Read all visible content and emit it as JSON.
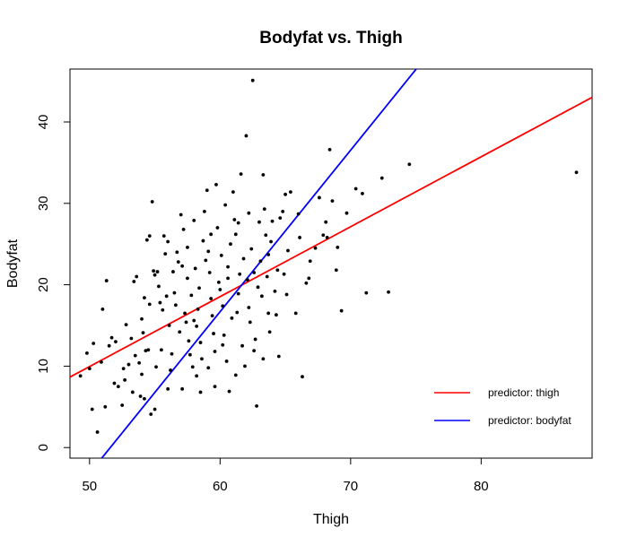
{
  "chart_data": {
    "type": "scatter",
    "title": "Bodyfat vs. Thigh",
    "xlabel": "Thigh",
    "ylabel": "Bodyfat",
    "xlim": [
      48.5,
      88.5
    ],
    "ylim": [
      -1.3,
      46.5
    ],
    "xticks": [
      50,
      60,
      70,
      80
    ],
    "yticks": [
      0,
      10,
      20,
      30,
      40
    ],
    "grid": false,
    "legend_position": "bottom-right",
    "lines": [
      {
        "name": "predictor: thigh",
        "color": "#ff0000",
        "intercept": -33.0,
        "slope": 0.859
      },
      {
        "name": "predictor: bodyfat",
        "color": "#0000ff",
        "intercept": -102.35,
        "slope": 1.984
      }
    ],
    "points": [
      [
        49.3,
        8.8
      ],
      [
        50.0,
        9.7
      ],
      [
        50.3,
        12.8
      ],
      [
        50.6,
        1.9
      ],
      [
        51.2,
        5.0
      ],
      [
        51.5,
        12.5
      ],
      [
        51.7,
        13.5
      ],
      [
        51.0,
        17.0
      ],
      [
        51.3,
        20.5
      ],
      [
        49.8,
        11.6
      ],
      [
        50.9,
        10.5
      ],
      [
        50.2,
        4.7
      ],
      [
        52.2,
        7.5
      ],
      [
        52.5,
        5.2
      ],
      [
        52.7,
        8.3
      ],
      [
        52.0,
        13.0
      ],
      [
        53.0,
        10.2
      ],
      [
        53.2,
        13.4
      ],
      [
        53.5,
        11.3
      ],
      [
        52.8,
        15.1
      ],
      [
        53.3,
        6.8
      ],
      [
        52.6,
        9.7
      ],
      [
        51.9,
        7.9
      ],
      [
        53.8,
        10.4
      ],
      [
        54.0,
        15.8
      ],
      [
        54.2,
        18.4
      ],
      [
        54.4,
        25.5
      ],
      [
        54.6,
        17.6
      ],
      [
        54.8,
        30.2
      ],
      [
        54.5,
        12.0
      ],
      [
        54.3,
        11.9
      ],
      [
        54.9,
        21.7
      ],
      [
        54.1,
        14.1
      ],
      [
        53.9,
        6.3
      ],
      [
        54.7,
        4.1
      ],
      [
        54.2,
        6.0
      ],
      [
        54.0,
        9.0
      ],
      [
        53.6,
        21.0
      ],
      [
        53.4,
        20.4
      ],
      [
        54.6,
        26.0
      ],
      [
        55.0,
        21.2
      ],
      [
        55.2,
        21.6
      ],
      [
        55.4,
        17.8
      ],
      [
        55.5,
        12.0
      ],
      [
        55.7,
        26.0
      ],
      [
        55.8,
        23.8
      ],
      [
        55.9,
        18.6
      ],
      [
        55.6,
        16.9
      ],
      [
        55.3,
        19.8
      ],
      [
        55.1,
        9.9
      ],
      [
        55.0,
        4.7
      ],
      [
        56.0,
        25.3
      ],
      [
        56.1,
        15.0
      ],
      [
        56.3,
        11.5
      ],
      [
        56.4,
        21.6
      ],
      [
        56.5,
        19.0
      ],
      [
        56.6,
        17.5
      ],
      [
        56.7,
        24.0
      ],
      [
        56.8,
        22.8
      ],
      [
        56.9,
        14.2
      ],
      [
        56.2,
        9.5
      ],
      [
        56.0,
        7.2
      ],
      [
        57.0,
        28.6
      ],
      [
        57.1,
        22.3
      ],
      [
        57.3,
        16.5
      ],
      [
        57.4,
        15.4
      ],
      [
        57.5,
        20.8
      ],
      [
        57.6,
        13.1
      ],
      [
        57.7,
        11.4
      ],
      [
        57.8,
        18.7
      ],
      [
        57.9,
        9.9
      ],
      [
        57.2,
        26.8
      ],
      [
        57.1,
        7.2
      ],
      [
        57.5,
        24.6
      ],
      [
        58.0,
        27.9
      ],
      [
        58.1,
        22.0
      ],
      [
        58.2,
        14.9
      ],
      [
        58.3,
        17.0
      ],
      [
        58.4,
        19.6
      ],
      [
        58.5,
        12.9
      ],
      [
        58.6,
        10.9
      ],
      [
        58.7,
        25.4
      ],
      [
        58.8,
        29.0
      ],
      [
        58.9,
        23.0
      ],
      [
        58.2,
        8.8
      ],
      [
        58.5,
        6.8
      ],
      [
        58.0,
        15.6
      ],
      [
        59.0,
        31.6
      ],
      [
        59.1,
        24.1
      ],
      [
        59.2,
        21.5
      ],
      [
        59.3,
        18.3
      ],
      [
        59.4,
        16.2
      ],
      [
        59.5,
        14.0
      ],
      [
        59.6,
        11.8
      ],
      [
        59.7,
        32.3
      ],
      [
        59.8,
        27.0
      ],
      [
        59.9,
        20.3
      ],
      [
        59.1,
        9.8
      ],
      [
        59.6,
        7.5
      ],
      [
        59.3,
        26.2
      ],
      [
        60.0,
        19.4
      ],
      [
        60.1,
        23.6
      ],
      [
        60.2,
        17.4
      ],
      [
        60.3,
        13.8
      ],
      [
        60.4,
        29.8
      ],
      [
        60.5,
        10.6
      ],
      [
        60.6,
        22.2
      ],
      [
        60.7,
        6.9
      ],
      [
        60.8,
        25.0
      ],
      [
        60.9,
        15.9
      ],
      [
        60.2,
        12.6
      ],
      [
        60.6,
        20.8
      ],
      [
        61.0,
        31.4
      ],
      [
        61.1,
        28.0
      ],
      [
        61.2,
        26.2
      ],
      [
        61.3,
        16.6
      ],
      [
        61.4,
        18.9
      ],
      [
        61.5,
        21.3
      ],
      [
        61.6,
        33.6
      ],
      [
        61.7,
        12.5
      ],
      [
        61.8,
        23.2
      ],
      [
        61.9,
        10.0
      ],
      [
        61.4,
        27.6
      ],
      [
        61.2,
        8.9
      ],
      [
        62.0,
        38.3
      ],
      [
        62.1,
        20.6
      ],
      [
        62.2,
        17.2
      ],
      [
        62.3,
        15.4
      ],
      [
        62.4,
        24.4
      ],
      [
        62.5,
        45.1
      ],
      [
        62.6,
        21.5
      ],
      [
        62.7,
        13.3
      ],
      [
        62.8,
        5.1
      ],
      [
        62.9,
        19.7
      ],
      [
        62.2,
        28.8
      ],
      [
        62.6,
        11.9
      ],
      [
        63.0,
        27.7
      ],
      [
        63.1,
        22.9
      ],
      [
        63.2,
        18.6
      ],
      [
        63.3,
        33.5
      ],
      [
        63.4,
        29.3
      ],
      [
        63.5,
        26.1
      ],
      [
        63.6,
        21.0
      ],
      [
        63.7,
        16.5
      ],
      [
        63.8,
        14.2
      ],
      [
        63.9,
        25.3
      ],
      [
        63.3,
        10.9
      ],
      [
        63.7,
        23.7
      ],
      [
        64.0,
        27.8
      ],
      [
        64.2,
        19.2
      ],
      [
        64.4,
        21.8
      ],
      [
        64.6,
        28.2
      ],
      [
        64.8,
        29.0
      ],
      [
        65.0,
        31.1
      ],
      [
        65.2,
        24.2
      ],
      [
        65.4,
        31.4
      ],
      [
        64.3,
        16.3
      ],
      [
        64.9,
        21.3
      ],
      [
        65.1,
        18.8
      ],
      [
        64.5,
        11.2
      ],
      [
        65.8,
        16.5
      ],
      [
        66.0,
        28.7
      ],
      [
        66.3,
        8.7
      ],
      [
        66.6,
        20.2
      ],
      [
        66.9,
        22.9
      ],
      [
        67.3,
        24.5
      ],
      [
        67.6,
        30.7
      ],
      [
        67.9,
        26.1
      ],
      [
        66.1,
        25.8
      ],
      [
        66.8,
        20.8
      ],
      [
        68.1,
        27.7
      ],
      [
        68.4,
        36.6
      ],
      [
        68.6,
        30.3
      ],
      [
        68.9,
        21.8
      ],
      [
        69.3,
        16.8
      ],
      [
        69.7,
        28.8
      ],
      [
        68.2,
        25.8
      ],
      [
        69.0,
        24.6
      ],
      [
        70.4,
        31.8
      ],
      [
        70.9,
        31.2
      ],
      [
        71.2,
        19.0
      ],
      [
        72.4,
        33.1
      ],
      [
        72.9,
        19.1
      ],
      [
        74.5,
        34.8
      ],
      [
        87.3,
        33.8
      ]
    ]
  }
}
